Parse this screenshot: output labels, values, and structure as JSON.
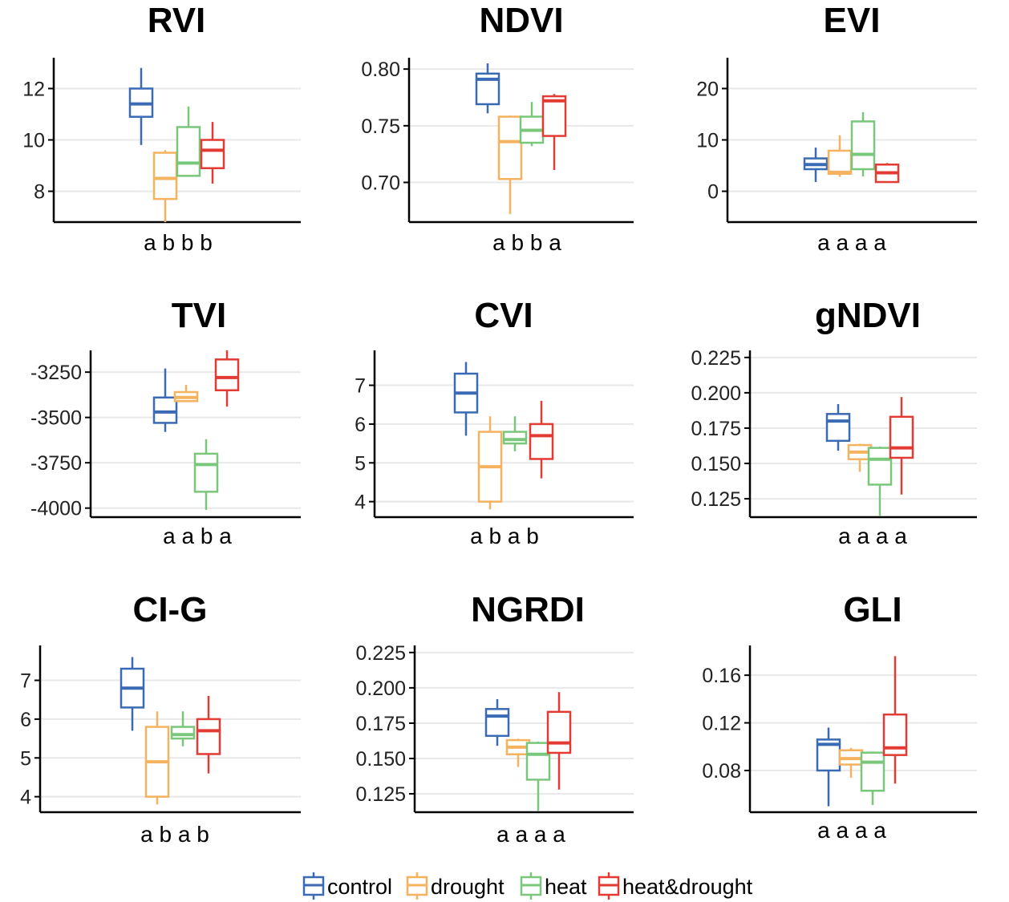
{
  "legend": [
    {
      "name": "control",
      "color": "#3b6ab5"
    },
    {
      "name": "drought",
      "color": "#f5b25f"
    },
    {
      "name": "heat",
      "color": "#79c77a"
    },
    {
      "name": "heat&drought",
      "color": "#e33a33"
    }
  ],
  "chart_data": [
    {
      "type": "box",
      "title": "RVI",
      "letters": "a b b b",
      "ylim": [
        6.8,
        13.2
      ],
      "yticks": [
        "8",
        "10",
        "12"
      ],
      "boxes": [
        {
          "series": "control",
          "whisker_low": 9.8,
          "q1": 10.9,
          "median": 11.4,
          "q3": 12.0,
          "whisker_high": 12.8
        },
        {
          "series": "drought",
          "whisker_low": 6.8,
          "q1": 7.7,
          "median": 8.5,
          "q3": 9.5,
          "whisker_high": 9.6
        },
        {
          "series": "heat",
          "whisker_low": 8.6,
          "q1": 8.6,
          "median": 9.1,
          "q3": 10.5,
          "whisker_high": 11.3
        },
        {
          "series": "heat&drought",
          "whisker_low": 8.3,
          "q1": 8.9,
          "median": 9.6,
          "q3": 10.0,
          "whisker_high": 10.7
        }
      ]
    },
    {
      "type": "box",
      "title": "NDVI",
      "letters": "a b b a",
      "ylim": [
        0.665,
        0.81
      ],
      "yticks": [
        "0.70",
        "0.75",
        "0.80"
      ],
      "boxes": [
        {
          "series": "control",
          "whisker_low": 0.761,
          "q1": 0.769,
          "median": 0.791,
          "q3": 0.796,
          "whisker_high": 0.805
        },
        {
          "series": "drought",
          "whisker_low": 0.672,
          "q1": 0.703,
          "median": 0.736,
          "q3": 0.758,
          "whisker_high": 0.759
        },
        {
          "series": "heat",
          "whisker_low": 0.732,
          "q1": 0.735,
          "median": 0.746,
          "q3": 0.758,
          "whisker_high": 0.771
        },
        {
          "series": "heat&drought",
          "whisker_low": 0.711,
          "q1": 0.741,
          "median": 0.772,
          "q3": 0.776,
          "whisker_high": 0.778
        }
      ]
    },
    {
      "type": "box",
      "title": "EVI",
      "letters": "a a a a",
      "ylim": [
        -6,
        26
      ],
      "yticks": [
        "0",
        "10",
        "20"
      ],
      "boxes": [
        {
          "series": "control",
          "whisker_low": 1.8,
          "q1": 4.3,
          "median": 5.2,
          "q3": 6.4,
          "whisker_high": 8.5
        },
        {
          "series": "drought",
          "whisker_low": 2.8,
          "q1": 3.4,
          "median": 3.7,
          "q3": 7.9,
          "whisker_high": 10.9
        },
        {
          "series": "heat",
          "whisker_low": 2.9,
          "q1": 4.3,
          "median": 7.2,
          "q3": 13.6,
          "whisker_high": 15.4
        },
        {
          "series": "heat&drought",
          "whisker_low": 1.8,
          "q1": 1.8,
          "median": 3.6,
          "q3": 5.2,
          "whisker_high": 5.5
        }
      ]
    },
    {
      "type": "box",
      "title": "TVI",
      "letters": "a a b a",
      "ylim": [
        -4050,
        -3130
      ],
      "yticks": [
        "-3250",
        "-3500",
        "-3750",
        "-4000"
      ],
      "ytick_values": [
        -3250,
        -3500,
        -3750,
        -4000
      ],
      "boxes": [
        {
          "series": "control",
          "whisker_low": -3580,
          "q1": -3530,
          "median": -3470,
          "q3": -3390,
          "whisker_high": -3230
        },
        {
          "series": "drought",
          "whisker_low": -3410,
          "q1": -3410,
          "median": -3390,
          "q3": -3360,
          "whisker_high": -3320
        },
        {
          "series": "heat",
          "whisker_low": -4010,
          "q1": -3910,
          "median": -3760,
          "q3": -3700,
          "whisker_high": -3620
        },
        {
          "series": "heat&drought",
          "whisker_low": -3440,
          "q1": -3350,
          "median": -3280,
          "q3": -3180,
          "whisker_high": -3130
        }
      ]
    },
    {
      "type": "box",
      "title": "CVI",
      "letters": "a b a b",
      "ylim": [
        3.6,
        7.9
      ],
      "yticks": [
        "4",
        "5",
        "6",
        "7"
      ],
      "boxes": [
        {
          "series": "control",
          "whisker_low": 5.7,
          "q1": 6.3,
          "median": 6.8,
          "q3": 7.3,
          "whisker_high": 7.6
        },
        {
          "series": "drought",
          "whisker_low": 3.8,
          "q1": 4.0,
          "median": 4.9,
          "q3": 5.8,
          "whisker_high": 6.2
        },
        {
          "series": "heat",
          "whisker_low": 5.3,
          "q1": 5.5,
          "median": 5.6,
          "q3": 5.8,
          "whisker_high": 6.2
        },
        {
          "series": "heat&drought",
          "whisker_low": 4.6,
          "q1": 5.1,
          "median": 5.7,
          "q3": 6.0,
          "whisker_high": 6.6
        }
      ]
    },
    {
      "type": "box",
      "title": "gNDVI",
      "letters": "a a a a",
      "ylim": [
        0.112,
        0.23
      ],
      "yticks": [
        "0.125",
        "0.150",
        "0.175",
        "0.200",
        "0.225"
      ],
      "boxes": [
        {
          "series": "control",
          "whisker_low": 0.159,
          "q1": 0.166,
          "median": 0.18,
          "q3": 0.185,
          "whisker_high": 0.192
        },
        {
          "series": "drought",
          "whisker_low": 0.144,
          "q1": 0.153,
          "median": 0.158,
          "q3": 0.163,
          "whisker_high": 0.164
        },
        {
          "series": "heat",
          "whisker_low": 0.113,
          "q1": 0.135,
          "median": 0.153,
          "q3": 0.161,
          "whisker_high": 0.162
        },
        {
          "series": "heat&drought",
          "whisker_low": 0.128,
          "q1": 0.154,
          "median": 0.161,
          "q3": 0.183,
          "whisker_high": 0.197
        }
      ]
    },
    {
      "type": "box",
      "title": "CI-G",
      "letters": "a b a b",
      "ylim": [
        3.6,
        7.9
      ],
      "yticks": [
        "4",
        "5",
        "6",
        "7"
      ],
      "boxes": [
        {
          "series": "control",
          "whisker_low": 5.7,
          "q1": 6.3,
          "median": 6.8,
          "q3": 7.3,
          "whisker_high": 7.6
        },
        {
          "series": "drought",
          "whisker_low": 3.8,
          "q1": 4.0,
          "median": 4.9,
          "q3": 5.8,
          "whisker_high": 6.2
        },
        {
          "series": "heat",
          "whisker_low": 5.3,
          "q1": 5.5,
          "median": 5.6,
          "q3": 5.8,
          "whisker_high": 6.2
        },
        {
          "series": "heat&drought",
          "whisker_low": 4.6,
          "q1": 5.1,
          "median": 5.7,
          "q3": 6.0,
          "whisker_high": 6.6
        }
      ]
    },
    {
      "type": "box",
      "title": "NGRDI",
      "letters": "a a a a",
      "ylim": [
        0.112,
        0.23
      ],
      "yticks": [
        "0.125",
        "0.150",
        "0.175",
        "0.200",
        "0.225"
      ],
      "boxes": [
        {
          "series": "control",
          "whisker_low": 0.159,
          "q1": 0.166,
          "median": 0.18,
          "q3": 0.185,
          "whisker_high": 0.192
        },
        {
          "series": "drought",
          "whisker_low": 0.144,
          "q1": 0.153,
          "median": 0.158,
          "q3": 0.163,
          "whisker_high": 0.164
        },
        {
          "series": "heat",
          "whisker_low": 0.113,
          "q1": 0.135,
          "median": 0.153,
          "q3": 0.161,
          "whisker_high": 0.162
        },
        {
          "series": "heat&drought",
          "whisker_low": 0.128,
          "q1": 0.154,
          "median": 0.161,
          "q3": 0.183,
          "whisker_high": 0.197
        }
      ]
    },
    {
      "type": "box",
      "title": "GLI",
      "letters": "a a a a",
      "ylim": [
        0.045,
        0.185
      ],
      "yticks": [
        "0.08",
        "0.12",
        "0.16"
      ],
      "boxes": [
        {
          "series": "control",
          "whisker_low": 0.05,
          "q1": 0.08,
          "median": 0.102,
          "q3": 0.106,
          "whisker_high": 0.116
        },
        {
          "series": "drought",
          "whisker_low": 0.074,
          "q1": 0.085,
          "median": 0.09,
          "q3": 0.097,
          "whisker_high": 0.099
        },
        {
          "series": "heat",
          "whisker_low": 0.051,
          "q1": 0.063,
          "median": 0.087,
          "q3": 0.095,
          "whisker_high": 0.096
        },
        {
          "series": "heat&drought",
          "whisker_low": 0.069,
          "q1": 0.093,
          "median": 0.099,
          "q3": 0.127,
          "whisker_high": 0.176
        }
      ]
    }
  ]
}
